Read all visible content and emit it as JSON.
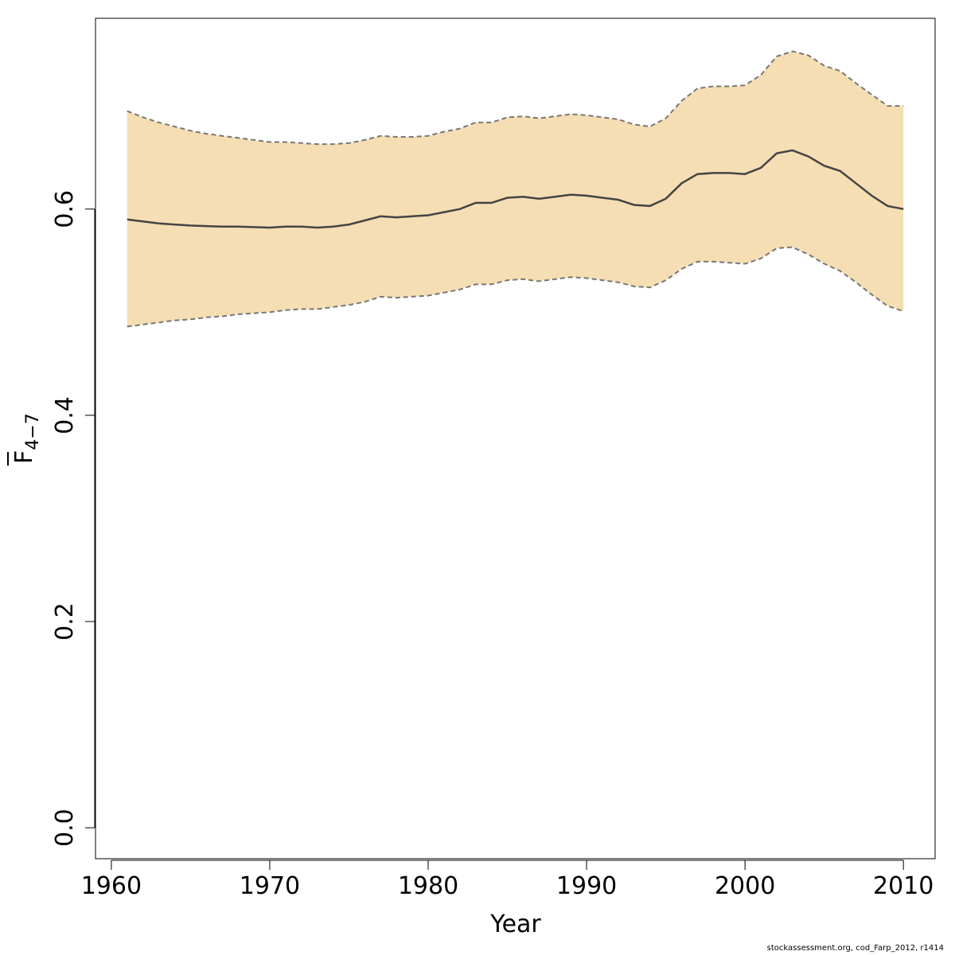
{
  "chart_data": {
    "type": "line",
    "xlabel": "Year",
    "ylabel": {
      "main": "F",
      "subscript": "4−7",
      "overline": true
    },
    "xlim": [
      1959,
      2012
    ],
    "ylim": [
      -0.03,
      0.785
    ],
    "xticks": [
      1960,
      1970,
      1980,
      1990,
      2000,
      2010
    ],
    "yticks": [
      "0.0",
      "0.2",
      "0.4",
      "0.6"
    ],
    "grid": false,
    "band_color": "#f5deb3",
    "line_color": "#444444",
    "bound_color": "#777777",
    "x": [
      1961,
      1962,
      1963,
      1964,
      1965,
      1966,
      1967,
      1968,
      1969,
      1970,
      1971,
      1972,
      1973,
      1974,
      1975,
      1976,
      1977,
      1978,
      1979,
      1980,
      1981,
      1982,
      1983,
      1984,
      1985,
      1986,
      1987,
      1988,
      1989,
      1990,
      1991,
      1992,
      1993,
      1994,
      1995,
      1996,
      1997,
      1998,
      1999,
      2000,
      2001,
      2002,
      2003,
      2004,
      2005,
      2006,
      2007,
      2008,
      2009,
      2010
    ],
    "series": [
      {
        "role": "estimate",
        "values": [
          0.59,
          0.588,
          0.586,
          0.585,
          0.584,
          0.5835,
          0.583,
          0.583,
          0.5825,
          0.582,
          0.583,
          0.583,
          0.582,
          0.583,
          0.585,
          0.589,
          0.593,
          0.592,
          0.593,
          0.594,
          0.597,
          0.6,
          0.606,
          0.606,
          0.611,
          0.612,
          0.61,
          0.612,
          0.614,
          0.613,
          0.611,
          0.609,
          0.604,
          0.603,
          0.61,
          0.625,
          0.634,
          0.635,
          0.635,
          0.634,
          0.64,
          0.654,
          0.657,
          0.651,
          0.642,
          0.637,
          0.625,
          0.613,
          0.603,
          0.6
        ]
      },
      {
        "role": "upper",
        "values": [
          0.695,
          0.689,
          0.684,
          0.68,
          0.676,
          0.673,
          0.671,
          0.669,
          0.667,
          0.665,
          0.665,
          0.664,
          0.663,
          0.663,
          0.664,
          0.667,
          0.671,
          0.67,
          0.67,
          0.671,
          0.675,
          0.678,
          0.684,
          0.684,
          0.689,
          0.69,
          0.688,
          0.69,
          0.692,
          0.691,
          0.689,
          0.687,
          0.682,
          0.68,
          0.688,
          0.705,
          0.717,
          0.719,
          0.719,
          0.72,
          0.73,
          0.748,
          0.753,
          0.749,
          0.739,
          0.734,
          0.722,
          0.711,
          0.7,
          0.7
        ]
      },
      {
        "role": "lower",
        "values": [
          0.486,
          0.488,
          0.49,
          0.492,
          0.493,
          0.495,
          0.496,
          0.498,
          0.499,
          0.5,
          0.502,
          0.503,
          0.503,
          0.505,
          0.507,
          0.51,
          0.515,
          0.514,
          0.515,
          0.516,
          0.519,
          0.522,
          0.527,
          0.527,
          0.531,
          0.532,
          0.53,
          0.532,
          0.534,
          0.533,
          0.531,
          0.529,
          0.525,
          0.524,
          0.531,
          0.542,
          0.549,
          0.549,
          0.548,
          0.547,
          0.552,
          0.562,
          0.563,
          0.556,
          0.547,
          0.54,
          0.529,
          0.517,
          0.506,
          0.501
        ]
      }
    ]
  },
  "footer": "stockassessment.org, cod_Farp_2012, r1414"
}
